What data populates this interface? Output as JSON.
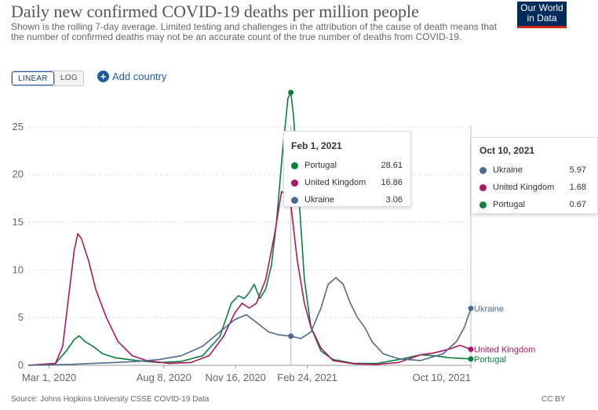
{
  "header": {
    "title": "Daily new confirmed COVID-19 deaths per million people",
    "subtitle": "Shown is the rolling 7-day average. Limited testing and challenges in the attribution of the cause of death means that the number of confirmed deaths may not be an accurate count of the true number of deaths from COVID-19.",
    "logo_line1": "Our World",
    "logo_line2": "in Data"
  },
  "controls": {
    "linear_label": "LINEAR",
    "log_label": "LOG",
    "add_country_label": "Add country"
  },
  "footer": {
    "source": "Source: Johns Hopkins University CSSE COVID-19 Data",
    "license": "CC BY"
  },
  "tooltips": [
    {
      "date": "Feb 1, 2021",
      "rows": [
        {
          "name": "Portugal",
          "value": "28.61",
          "color": "#0b7f3f"
        },
        {
          "name": "United Kingdom",
          "value": "16.86",
          "color": "#b0165d"
        },
        {
          "name": "Ukraine",
          "value": "3.06",
          "color": "#506a8e"
        }
      ]
    },
    {
      "date": "Oct 10, 2021",
      "rows": [
        {
          "name": "Ukraine",
          "value": "5.97",
          "color": "#506a8e"
        },
        {
          "name": "United Kingdom",
          "value": "1.68",
          "color": "#b0165d"
        },
        {
          "name": "Portugal",
          "value": "0.67",
          "color": "#0b7f3f"
        }
      ]
    }
  ],
  "chart_data": {
    "type": "line",
    "title": "Daily new confirmed COVID-19 deaths per million people",
    "ylim": [
      0,
      25
    ],
    "yticks": [
      0,
      5,
      10,
      15,
      20,
      25
    ],
    "xticks": [
      "Mar 1, 2020",
      "Aug 8, 2020",
      "Nov 16, 2020",
      "Feb 24, 2021",
      "Oct 10, 2021"
    ],
    "xlim": [
      "2020-02-01",
      "2021-10-10"
    ],
    "grid": true,
    "series": [
      {
        "name": "Portugal",
        "color": "#0b7f3f",
        "points": [
          [
            "2020-02-01",
            0
          ],
          [
            "2020-03-10",
            0.2
          ],
          [
            "2020-03-25",
            1.5
          ],
          [
            "2020-04-05",
            2.7
          ],
          [
            "2020-04-12",
            3.1
          ],
          [
            "2020-04-20",
            2.5
          ],
          [
            "2020-05-01",
            2.0
          ],
          [
            "2020-05-15",
            1.2
          ],
          [
            "2020-06-01",
            0.8
          ],
          [
            "2020-07-01",
            0.5
          ],
          [
            "2020-08-01",
            0.3
          ],
          [
            "2020-09-01",
            0.4
          ],
          [
            "2020-10-01",
            1.0
          ],
          [
            "2020-10-25",
            3.0
          ],
          [
            "2020-11-10",
            6.5
          ],
          [
            "2020-11-20",
            7.3
          ],
          [
            "2020-11-28",
            7.0
          ],
          [
            "2020-12-05",
            7.6
          ],
          [
            "2020-12-12",
            8.5
          ],
          [
            "2020-12-20",
            7.0
          ],
          [
            "2020-12-28",
            8.0
          ],
          [
            "2021-01-05",
            10.5
          ],
          [
            "2021-01-12",
            15.0
          ],
          [
            "2021-01-20",
            22.0
          ],
          [
            "2021-01-28",
            28.0
          ],
          [
            "2021-02-01",
            28.61
          ],
          [
            "2021-02-05",
            26.0
          ],
          [
            "2021-02-12",
            18.0
          ],
          [
            "2021-02-20",
            9.0
          ],
          [
            "2021-03-01",
            4.0
          ],
          [
            "2021-03-15",
            1.5
          ],
          [
            "2021-04-01",
            0.6
          ],
          [
            "2021-05-01",
            0.2
          ],
          [
            "2021-06-01",
            0.2
          ],
          [
            "2021-07-01",
            0.6
          ],
          [
            "2021-08-01",
            1.1
          ],
          [
            "2021-08-20",
            1.0
          ],
          [
            "2021-09-10",
            0.8
          ],
          [
            "2021-10-10",
            0.67
          ]
        ]
      },
      {
        "name": "United Kingdom",
        "color": "#b0165d",
        "points": [
          [
            "2020-02-01",
            0
          ],
          [
            "2020-03-10",
            0.2
          ],
          [
            "2020-03-20",
            2.0
          ],
          [
            "2020-03-28",
            7.0
          ],
          [
            "2020-04-05",
            12.0
          ],
          [
            "2020-04-10",
            13.8
          ],
          [
            "2020-04-15",
            13.3
          ],
          [
            "2020-04-25",
            11.0
          ],
          [
            "2020-05-05",
            8.0
          ],
          [
            "2020-05-20",
            5.0
          ],
          [
            "2020-06-05",
            2.5
          ],
          [
            "2020-06-25",
            1.0
          ],
          [
            "2020-07-15",
            0.5
          ],
          [
            "2020-08-15",
            0.2
          ],
          [
            "2020-09-15",
            0.3
          ],
          [
            "2020-10-10",
            1.0
          ],
          [
            "2020-10-30",
            3.0
          ],
          [
            "2020-11-15",
            5.5
          ],
          [
            "2020-11-25",
            6.5
          ],
          [
            "2020-12-05",
            6.0
          ],
          [
            "2020-12-15",
            6.5
          ],
          [
            "2020-12-28",
            9.0
          ],
          [
            "2021-01-10",
            14.0
          ],
          [
            "2021-01-19",
            18.2
          ],
          [
            "2021-01-25",
            18.0
          ],
          [
            "2021-02-01",
            16.86
          ],
          [
            "2021-02-10",
            11.0
          ],
          [
            "2021-02-20",
            6.5
          ],
          [
            "2021-03-01",
            4.0
          ],
          [
            "2021-03-15",
            1.8
          ],
          [
            "2021-04-01",
            0.5
          ],
          [
            "2021-05-01",
            0.15
          ],
          [
            "2021-06-01",
            0.1
          ],
          [
            "2021-07-01",
            0.3
          ],
          [
            "2021-08-01",
            1.1
          ],
          [
            "2021-08-20",
            1.3
          ],
          [
            "2021-09-10",
            1.7
          ],
          [
            "2021-09-25",
            2.1
          ],
          [
            "2021-10-10",
            1.68
          ]
        ]
      },
      {
        "name": "Ukraine",
        "color": "#506a8e",
        "points": [
          [
            "2020-02-01",
            0
          ],
          [
            "2020-04-01",
            0.1
          ],
          [
            "2020-05-01",
            0.2
          ],
          [
            "2020-06-01",
            0.3
          ],
          [
            "2020-07-01",
            0.4
          ],
          [
            "2020-08-01",
            0.6
          ],
          [
            "2020-09-01",
            1.0
          ],
          [
            "2020-10-01",
            2.0
          ],
          [
            "2020-10-25",
            3.5
          ],
          [
            "2020-11-15",
            4.8
          ],
          [
            "2020-12-01",
            5.3
          ],
          [
            "2020-12-10",
            4.8
          ],
          [
            "2020-12-20",
            4.2
          ],
          [
            "2021-01-01",
            3.5
          ],
          [
            "2021-01-15",
            3.2
          ],
          [
            "2021-02-01",
            3.06
          ],
          [
            "2021-02-15",
            2.8
          ],
          [
            "2021-03-01",
            3.5
          ],
          [
            "2021-03-15",
            6.0
          ],
          [
            "2021-03-25",
            8.5
          ],
          [
            "2021-04-05",
            9.2
          ],
          [
            "2021-04-15",
            8.5
          ],
          [
            "2021-04-25",
            6.5
          ],
          [
            "2021-05-05",
            5.0
          ],
          [
            "2021-05-15",
            4.0
          ],
          [
            "2021-05-25",
            2.5
          ],
          [
            "2021-06-10",
            1.2
          ],
          [
            "2021-07-01",
            0.7
          ],
          [
            "2021-08-01",
            0.5
          ],
          [
            "2021-09-01",
            1.2
          ],
          [
            "2021-09-20",
            2.5
          ],
          [
            "2021-10-01",
            4.0
          ],
          [
            "2021-10-10",
            5.97
          ]
        ]
      }
    ]
  }
}
